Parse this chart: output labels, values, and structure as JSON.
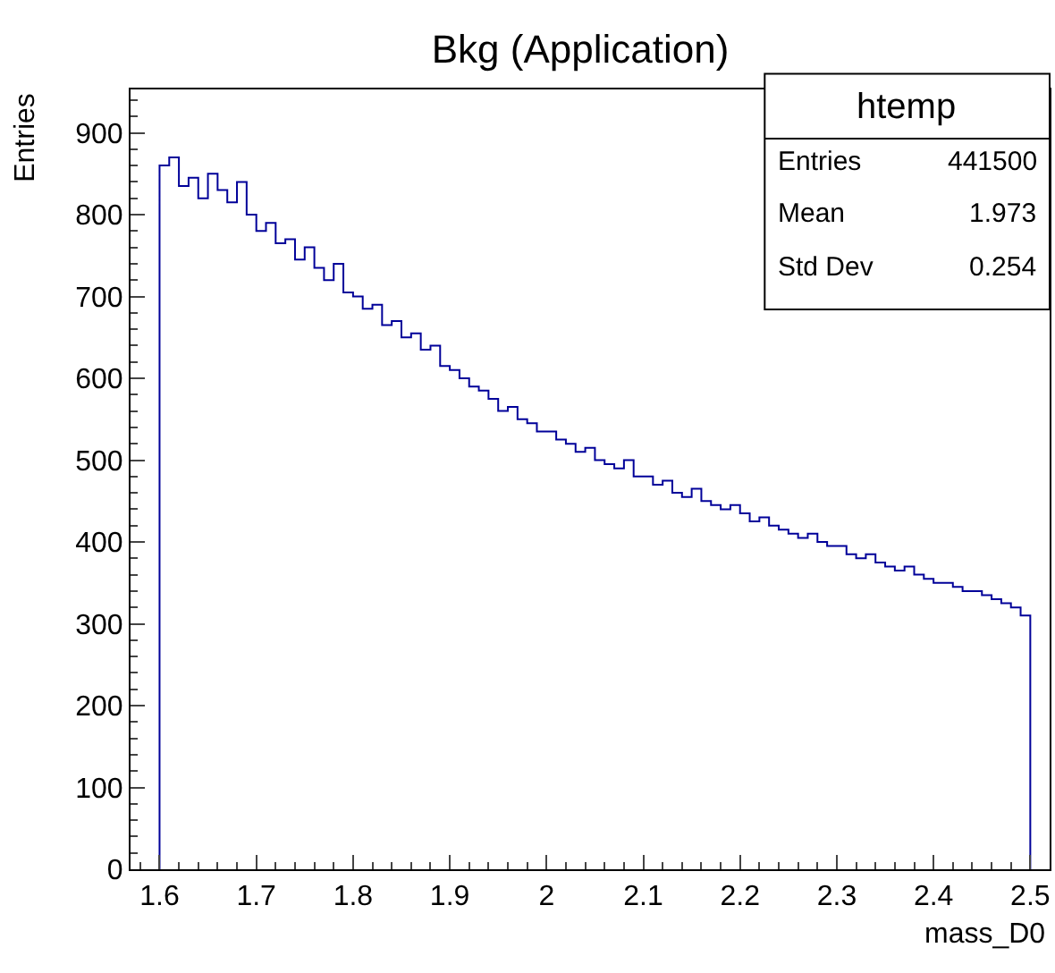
{
  "chart_data": {
    "type": "histogram",
    "title": "Bkg (Application)",
    "xlabel": "mass_D0",
    "ylabel": "Entries",
    "bins": [
      1.6,
      1.61,
      1.62,
      1.63,
      1.64,
      1.65,
      1.66,
      1.67,
      1.68,
      1.69,
      1.7,
      1.71,
      1.72,
      1.73,
      1.74,
      1.75,
      1.76,
      1.77,
      1.78,
      1.79,
      1.8,
      1.81,
      1.82,
      1.83,
      1.84,
      1.85,
      1.86,
      1.87,
      1.88,
      1.89,
      1.9,
      1.91,
      1.92,
      1.93,
      1.94,
      1.95,
      1.96,
      1.97,
      1.98,
      1.99,
      2.0,
      2.01,
      2.02,
      2.03,
      2.04,
      2.05,
      2.06,
      2.07,
      2.08,
      2.09,
      2.1,
      2.11,
      2.12,
      2.13,
      2.14,
      2.15,
      2.16,
      2.17,
      2.18,
      2.19,
      2.2,
      2.21,
      2.22,
      2.23,
      2.24,
      2.25,
      2.26,
      2.27,
      2.28,
      2.29,
      2.3,
      2.31,
      2.32,
      2.33,
      2.34,
      2.35,
      2.36,
      2.37,
      2.38,
      2.39,
      2.4,
      2.41,
      2.42,
      2.43,
      2.44,
      2.45,
      2.46,
      2.47,
      2.48,
      2.49,
      2.5
    ],
    "values": [
      860,
      870,
      835,
      845,
      820,
      850,
      830,
      815,
      840,
      800,
      780,
      790,
      765,
      770,
      745,
      760,
      735,
      720,
      740,
      705,
      700,
      685,
      690,
      665,
      670,
      650,
      655,
      635,
      640,
      615,
      610,
      600,
      590,
      585,
      575,
      560,
      565,
      550,
      545,
      535,
      535,
      525,
      520,
      510,
      515,
      500,
      495,
      490,
      500,
      480,
      480,
      470,
      475,
      460,
      455,
      465,
      450,
      445,
      440,
      445,
      435,
      425,
      430,
      420,
      415,
      410,
      405,
      410,
      400,
      395,
      395,
      385,
      380,
      385,
      375,
      370,
      365,
      370,
      360,
      355,
      350,
      350,
      345,
      340,
      340,
      335,
      330,
      325,
      320,
      310
    ],
    "color": "#000099",
    "xlim": [
      1.57,
      2.52
    ],
    "ylim": [
      0,
      953
    ],
    "xticks": [
      1.6,
      1.7,
      1.8,
      1.9,
      2,
      2.1,
      2.2,
      2.3,
      2.4,
      2.5
    ],
    "yticks": [
      0,
      100,
      200,
      300,
      400,
      500,
      600,
      700,
      800,
      900
    ],
    "annotations": [
      "htemp",
      "Entries",
      "441500",
      "Mean",
      "1.973",
      "Std Dev",
      "0.254"
    ]
  }
}
